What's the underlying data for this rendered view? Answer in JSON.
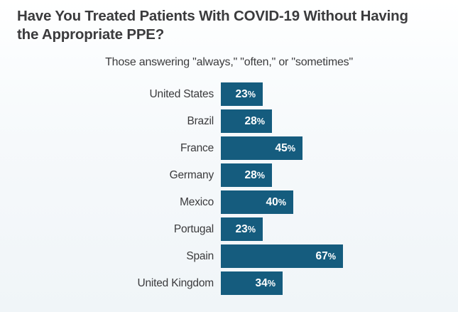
{
  "title": "Have You Treated Patients With COVID-19 Without Having the Appropriate PPE?",
  "subtitle": "Those answering \"always,\" \"often,\" or \"sometimes\"",
  "chart_data": {
    "type": "bar",
    "orientation": "horizontal",
    "title": "Have You Treated Patients With COVID-19 Without Having the Appropriate PPE?",
    "subtitle": "Those answering \"always,\" \"often,\" or \"sometimes\"",
    "categories": [
      "United States",
      "Brazil",
      "France",
      "Germany",
      "Mexico",
      "Portugal",
      "Spain",
      "United Kingdom"
    ],
    "values": [
      23,
      28,
      45,
      28,
      40,
      23,
      67,
      34
    ],
    "value_labels": [
      "23%",
      "28%",
      "45%",
      "28%",
      "40%",
      "23%",
      "67%",
      "34%"
    ],
    "value_unit": "%",
    "legend": false,
    "grid": false,
    "axis_ticks_visible": false
  },
  "colors": {
    "bar": "#155C7E",
    "title_text": "#3B3B3D",
    "category_text": "#3A3A3C",
    "value_text": "#FFFFFF",
    "background_top": "#FFFFFF",
    "background_bottom": "#F0F5F8"
  }
}
